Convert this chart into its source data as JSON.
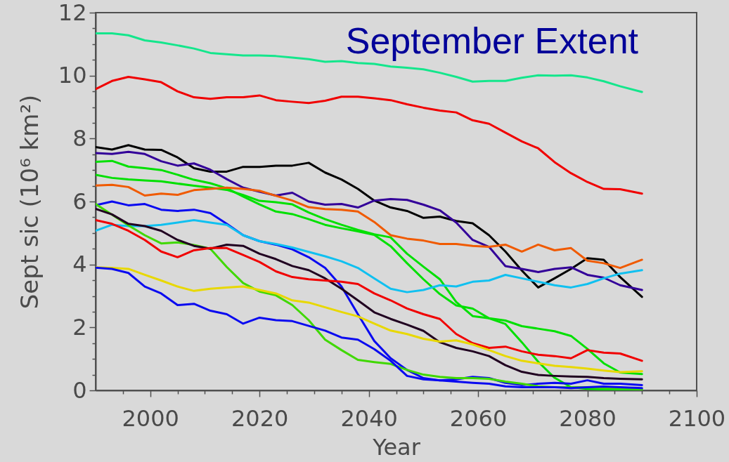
{
  "chart_data": {
    "type": "line",
    "title": "September Extent",
    "xlabel": "Year",
    "ylabel": "Sept sic (10⁶ km²)",
    "xlim": [
      1990,
      2100
    ],
    "xticks": [
      {
        "value": 1995,
        "label": null
      },
      2000,
      {
        "value": 2005,
        "label": null
      },
      {
        "value": 2010,
        "label": null
      },
      {
        "value": 2015,
        "label": null
      },
      2020,
      {
        "value": 2025,
        "label": null
      },
      {
        "value": 2030,
        "label": null
      },
      {
        "value": 2035,
        "label": null
      },
      2040,
      {
        "value": 2045,
        "label": null
      },
      {
        "value": 2050,
        "label": null
      },
      {
        "value": 2055,
        "label": null
      },
      2060,
      {
        "value": 2065,
        "label": null
      },
      {
        "value": 2070,
        "label": null
      },
      {
        "value": 2075,
        "label": null
      },
      2080,
      {
        "value": 2085,
        "label": null
      },
      {
        "value": 2090,
        "label": null
      },
      {
        "value": 2095,
        "label": null
      },
      2100
    ],
    "ylim": [
      0,
      12
    ],
    "yticks": [
      0,
      {
        "value": 0.5,
        "label": null
      },
      {
        "value": 1,
        "label": null
      },
      {
        "value": 1.5,
        "label": null
      },
      2,
      {
        "value": 2.5,
        "label": null
      },
      {
        "value": 3,
        "label": null
      },
      {
        "value": 3.5,
        "label": null
      },
      4,
      {
        "value": 4.5,
        "label": null
      },
      {
        "value": 5,
        "label": null
      },
      {
        "value": 5.5,
        "label": null
      },
      6,
      {
        "value": 6.5,
        "label": null
      },
      {
        "value": 7,
        "label": null
      },
      {
        "value": 7.5,
        "label": null
      },
      8,
      {
        "value": 8.5,
        "label": null
      },
      {
        "value": 9,
        "label": null
      },
      {
        "value": 9.5,
        "label": null
      },
      10,
      {
        "value": 10.5,
        "label": null
      },
      {
        "value": 11,
        "label": null
      },
      {
        "value": 11.5,
        "label": null
      },
      12
    ],
    "line_style": "solid",
    "x": [
      1990,
      1993,
      1996,
      1999,
      2002,
      2005,
      2008,
      2011,
      2014,
      2017,
      2020,
      2023,
      2026,
      2029,
      2032,
      2035,
      2038,
      2041,
      2044,
      2047,
      2050,
      2053,
      2056,
      2059,
      2062,
      2065,
      2068,
      2071,
      2074,
      2077,
      2080,
      2083,
      2086,
      2090
    ],
    "series": [
      {
        "color": "#14e68c",
        "values": [
          11.34,
          11.34,
          11.28,
          11.12,
          11.05,
          10.96,
          10.86,
          10.72,
          10.68,
          10.64,
          10.64,
          10.62,
          10.57,
          10.52,
          10.44,
          10.46,
          10.4,
          10.37,
          10.29,
          10.25,
          10.2,
          10.09,
          9.96,
          9.81,
          9.83,
          9.83,
          9.93,
          10.01,
          10.0,
          10.01,
          9.94,
          9.82,
          9.66,
          9.48
        ]
      },
      {
        "color": "#f00000",
        "values": [
          9.57,
          9.83,
          9.96,
          9.88,
          9.79,
          9.5,
          9.31,
          9.26,
          9.31,
          9.31,
          9.37,
          9.22,
          9.17,
          9.13,
          9.2,
          9.33,
          9.33,
          9.28,
          9.22,
          9.09,
          8.98,
          8.89,
          8.83,
          8.58,
          8.47,
          8.19,
          7.91,
          7.69,
          7.25,
          6.9,
          6.62,
          6.4,
          6.39,
          6.25
        ]
      },
      {
        "color": "#000000",
        "values": [
          7.73,
          7.65,
          7.79,
          7.65,
          7.64,
          7.4,
          7.06,
          6.95,
          6.95,
          7.1,
          7.1,
          7.14,
          7.14,
          7.23,
          6.92,
          6.7,
          6.4,
          6.03,
          5.81,
          5.7,
          5.48,
          5.52,
          5.38,
          5.31,
          4.93,
          4.41,
          3.81,
          3.27,
          3.56,
          3.86,
          4.2,
          4.15,
          3.6,
          2.97
        ]
      },
      {
        "color": "#330099",
        "values": [
          7.54,
          7.51,
          7.58,
          7.51,
          7.28,
          7.14,
          7.21,
          7.01,
          6.71,
          6.44,
          6.31,
          6.19,
          6.28,
          6.0,
          5.9,
          5.92,
          5.81,
          6.03,
          6.08,
          6.05,
          5.9,
          5.72,
          5.33,
          4.78,
          4.56,
          3.95,
          3.86,
          3.76,
          3.86,
          3.91,
          3.67,
          3.58,
          3.34,
          3.19
        ]
      },
      {
        "color": "#00e000",
        "values": [
          7.26,
          7.29,
          7.11,
          7.06,
          7.0,
          6.85,
          6.69,
          6.58,
          6.42,
          6.16,
          5.91,
          5.68,
          5.6,
          5.44,
          5.26,
          5.15,
          5.05,
          4.94,
          4.58,
          4.04,
          3.53,
          3.06,
          2.7,
          2.6,
          2.29,
          2.22,
          2.04,
          1.96,
          1.88,
          1.73,
          1.32,
          0.86,
          0.57,
          0.52
        ]
      },
      {
        "color": "#00e000",
        "values": [
          6.85,
          6.75,
          6.7,
          6.67,
          6.64,
          6.57,
          6.5,
          6.44,
          6.37,
          6.21,
          6.02,
          5.98,
          5.91,
          5.65,
          5.44,
          5.26,
          5.1,
          4.96,
          4.86,
          4.34,
          3.93,
          3.53,
          2.81,
          2.36,
          2.29,
          2.11,
          1.53,
          0.91,
          0.4,
          0.1,
          0.05,
          0.03,
          0.01,
          0.0
        ]
      },
      {
        "color": "#f05a00",
        "values": [
          6.51,
          6.53,
          6.46,
          6.19,
          6.25,
          6.21,
          6.36,
          6.4,
          6.44,
          6.4,
          6.34,
          6.18,
          6.03,
          5.82,
          5.76,
          5.74,
          5.68,
          5.35,
          4.93,
          4.82,
          4.76,
          4.65,
          4.65,
          4.59,
          4.56,
          4.63,
          4.41,
          4.63,
          4.45,
          4.52,
          4.12,
          4.04,
          3.89,
          4.15
        ]
      },
      {
        "color": "#0a0af0",
        "values": [
          5.88,
          6.0,
          5.88,
          5.92,
          5.74,
          5.7,
          5.74,
          5.63,
          5.29,
          4.93,
          4.74,
          4.63,
          4.48,
          4.23,
          3.89,
          3.3,
          2.42,
          1.57,
          1.02,
          0.65,
          0.39,
          0.32,
          0.35,
          0.43,
          0.39,
          0.24,
          0.17,
          0.21,
          0.24,
          0.21,
          0.32,
          0.21,
          0.21,
          0.17
        ]
      },
      {
        "color": "#10c0f0",
        "values": [
          5.07,
          5.26,
          5.22,
          5.22,
          5.26,
          5.33,
          5.41,
          5.33,
          5.26,
          4.93,
          4.74,
          4.65,
          4.54,
          4.4,
          4.26,
          4.1,
          3.89,
          3.56,
          3.23,
          3.12,
          3.19,
          3.34,
          3.3,
          3.45,
          3.49,
          3.67,
          3.56,
          3.45,
          3.34,
          3.27,
          3.38,
          3.56,
          3.71,
          3.82
        ]
      },
      {
        "color": "#40d800",
        "values": [
          5.92,
          5.58,
          5.24,
          4.93,
          4.67,
          4.7,
          4.62,
          4.5,
          3.92,
          3.41,
          3.14,
          3.02,
          2.71,
          2.23,
          1.61,
          1.28,
          0.97,
          0.9,
          0.84,
          0.65,
          0.5,
          0.43,
          0.39,
          0.39,
          0.37,
          0.28,
          0.21,
          0.13,
          0.1,
          0.1,
          0.1,
          0.07,
          0.06,
          0.04
        ]
      },
      {
        "color": "#200020",
        "values": [
          5.77,
          5.59,
          5.29,
          5.22,
          5.07,
          4.78,
          4.59,
          4.5,
          4.63,
          4.59,
          4.34,
          4.17,
          3.95,
          3.82,
          3.56,
          3.23,
          2.86,
          2.48,
          2.27,
          2.09,
          1.89,
          1.53,
          1.35,
          1.24,
          1.09,
          0.8,
          0.59,
          0.49,
          0.46,
          0.44,
          0.43,
          0.39,
          0.37,
          0.35
        ]
      },
      {
        "color": "#f00000",
        "values": [
          5.41,
          5.29,
          5.07,
          4.78,
          4.41,
          4.23,
          4.45,
          4.52,
          4.52,
          4.3,
          4.08,
          3.78,
          3.6,
          3.53,
          3.49,
          3.45,
          3.38,
          3.08,
          2.86,
          2.6,
          2.42,
          2.27,
          1.79,
          1.5,
          1.35,
          1.39,
          1.24,
          1.13,
          1.09,
          1.02,
          1.28,
          1.2,
          1.17,
          0.94
        ]
      },
      {
        "color": "#e8d800",
        "values": [
          3.91,
          3.89,
          3.86,
          3.67,
          3.49,
          3.3,
          3.16,
          3.23,
          3.27,
          3.3,
          3.19,
          3.08,
          2.86,
          2.79,
          2.64,
          2.49,
          2.35,
          2.12,
          1.9,
          1.79,
          1.64,
          1.55,
          1.59,
          1.46,
          1.28,
          1.09,
          0.94,
          0.86,
          0.78,
          0.74,
          0.69,
          0.63,
          0.58,
          0.61
        ]
      },
      {
        "color": "#0a0af0",
        "values": [
          3.9,
          3.86,
          3.73,
          3.3,
          3.08,
          2.71,
          2.75,
          2.53,
          2.42,
          2.12,
          2.31,
          2.23,
          2.2,
          2.05,
          1.9,
          1.68,
          1.61,
          1.31,
          0.94,
          0.46,
          0.35,
          0.32,
          0.28,
          0.24,
          0.21,
          0.13,
          0.1,
          0.1,
          0.1,
          0.07,
          0.1,
          0.12,
          0.1,
          0.07
        ]
      }
    ]
  }
}
